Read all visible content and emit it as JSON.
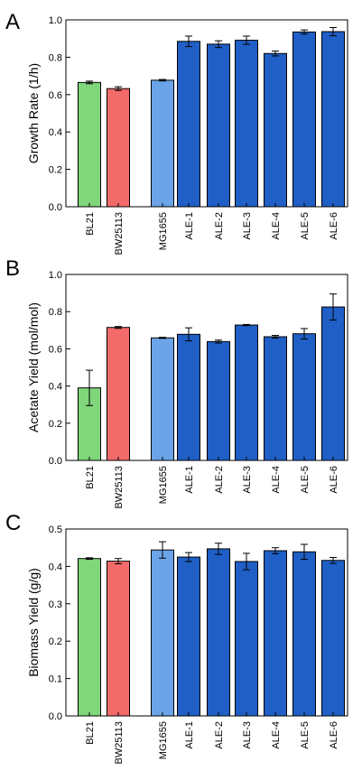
{
  "chart_data": [
    {
      "type": "bar",
      "panel_label": "A",
      "ylabel": "Growth Rate (1/h)",
      "xlabel": "",
      "categories": [
        "BL21",
        "BW25113",
        "MG1655",
        "ALE-1",
        "ALE-2",
        "ALE-3",
        "ALE-4",
        "ALE-5",
        "ALE-6"
      ],
      "values": [
        0.665,
        0.632,
        0.677,
        0.885,
        0.87,
        0.891,
        0.82,
        0.935,
        0.937
      ],
      "errors": [
        0.007,
        0.01,
        0.004,
        0.028,
        0.018,
        0.022,
        0.013,
        0.011,
        0.022
      ],
      "ylim": [
        0,
        1.0
      ],
      "yticks": [
        0.0,
        0.2,
        0.4,
        0.6,
        0.8,
        1.0
      ],
      "ytick_labels": [
        "0.0",
        "0.2",
        "0.4",
        "0.6",
        "0.8",
        "1.0"
      ],
      "grid": false
    },
    {
      "type": "bar",
      "panel_label": "B",
      "ylabel": "Acetate Yield (mol/mol)",
      "xlabel": "",
      "categories": [
        "BL21",
        "BW25113",
        "MG1655",
        "ALE-1",
        "ALE-2",
        "ALE-3",
        "ALE-4",
        "ALE-5",
        "ALE-6"
      ],
      "values": [
        0.39,
        0.715,
        0.659,
        0.678,
        0.639,
        0.728,
        0.665,
        0.681,
        0.825
      ],
      "errors": [
        0.095,
        0.005,
        0.003,
        0.035,
        0.008,
        0.003,
        0.007,
        0.028,
        0.07
      ],
      "ylim": [
        0,
        1.0
      ],
      "yticks": [
        0.0,
        0.2,
        0.4,
        0.6,
        0.8,
        1.0
      ],
      "ytick_labels": [
        "0.0",
        "0.2",
        "0.4",
        "0.6",
        "0.8",
        "1.0"
      ],
      "grid": false
    },
    {
      "type": "bar",
      "panel_label": "C",
      "ylabel": "Biomass Yield (g/g)",
      "xlabel": "",
      "categories": [
        "BL21",
        "BW25113",
        "MG1655",
        "ALE-1",
        "ALE-2",
        "ALE-3",
        "ALE-4",
        "ALE-5",
        "ALE-6"
      ],
      "values": [
        0.421,
        0.414,
        0.444,
        0.425,
        0.447,
        0.413,
        0.442,
        0.439,
        0.416
      ],
      "errors": [
        0.002,
        0.007,
        0.022,
        0.012,
        0.015,
        0.022,
        0.008,
        0.02,
        0.008
      ],
      "ylim": [
        0,
        0.5
      ],
      "yticks": [
        0.0,
        0.1,
        0.2,
        0.3,
        0.4,
        0.5
      ],
      "ytick_labels": [
        "0.0",
        "0.1",
        "0.2",
        "0.3",
        "0.4",
        "0.5"
      ],
      "grid": false
    }
  ],
  "bar_colors": [
    "#80d67a",
    "#f36a6a",
    "#6ba4e8",
    "#1f5fc6",
    "#1f5fc6",
    "#1f5fc6",
    "#1f5fc6",
    "#1f5fc6",
    "#1f5fc6"
  ]
}
